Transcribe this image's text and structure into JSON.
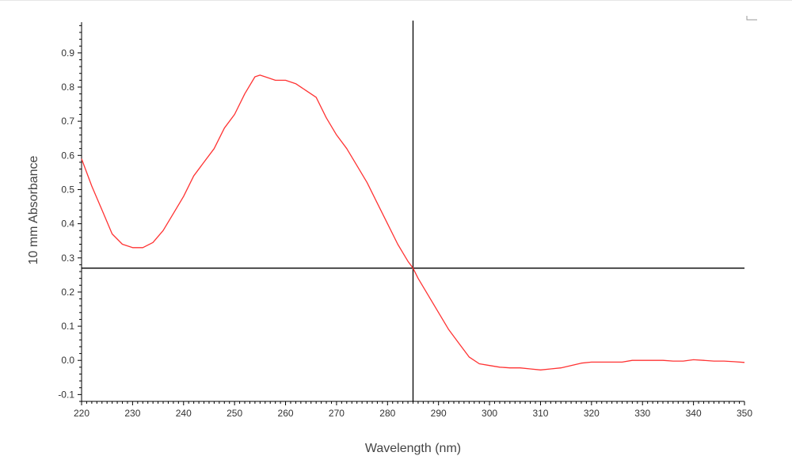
{
  "chart_data": {
    "type": "line",
    "title": "",
    "xlabel": "Wavelength (nm)",
    "ylabel": "10 mm Absorbance",
    "xlim": [
      220,
      350
    ],
    "ylim": [
      -0.12,
      0.99
    ],
    "x_ticks": [
      220,
      230,
      240,
      250,
      260,
      270,
      280,
      290,
      300,
      310,
      320,
      330,
      340,
      350
    ],
    "y_ticks": [
      -0.1,
      0.0,
      0.1,
      0.2,
      0.3,
      0.4,
      0.5,
      0.6,
      0.7,
      0.8,
      0.9
    ],
    "y_tick_labels": [
      "-0.1",
      "0.0",
      "0.1",
      "0.2",
      "0.3",
      "0.4",
      "0.5",
      "0.6",
      "0.7",
      "0.8",
      "0.9"
    ],
    "grid": false,
    "legend": "none",
    "crosshair": {
      "x": 285,
      "y": 0.27,
      "color": "#000000"
    },
    "series": [
      {
        "color": "#ff3333",
        "x": [
          220,
          222,
          224,
          226,
          228,
          230,
          232,
          234,
          236,
          238,
          240,
          242,
          244,
          246,
          248,
          250,
          252,
          254,
          255,
          256,
          258,
          260,
          262,
          264,
          266,
          268,
          270,
          272,
          274,
          276,
          278,
          280,
          282,
          284,
          285,
          286,
          288,
          290,
          292,
          294,
          296,
          298,
          300,
          302,
          304,
          306,
          308,
          310,
          312,
          314,
          316,
          318,
          320,
          322,
          324,
          326,
          328,
          330,
          332,
          334,
          336,
          338,
          340,
          342,
          344,
          346,
          348,
          350
        ],
        "y": [
          0.59,
          0.51,
          0.44,
          0.37,
          0.34,
          0.33,
          0.33,
          0.345,
          0.38,
          0.43,
          0.48,
          0.54,
          0.58,
          0.62,
          0.68,
          0.72,
          0.78,
          0.83,
          0.835,
          0.83,
          0.82,
          0.82,
          0.81,
          0.79,
          0.77,
          0.71,
          0.66,
          0.62,
          0.57,
          0.52,
          0.46,
          0.4,
          0.34,
          0.29,
          0.27,
          0.24,
          0.19,
          0.14,
          0.09,
          0.05,
          0.01,
          -0.01,
          -0.015,
          -0.02,
          -0.022,
          -0.022,
          -0.025,
          -0.028,
          -0.025,
          -0.022,
          -0.015,
          -0.008,
          -0.005,
          -0.005,
          -0.005,
          -0.005,
          0.0,
          0.0,
          0.0,
          0.0,
          -0.002,
          -0.002,
          0.002,
          0.0,
          -0.002,
          -0.002,
          -0.004,
          -0.006
        ]
      }
    ]
  }
}
